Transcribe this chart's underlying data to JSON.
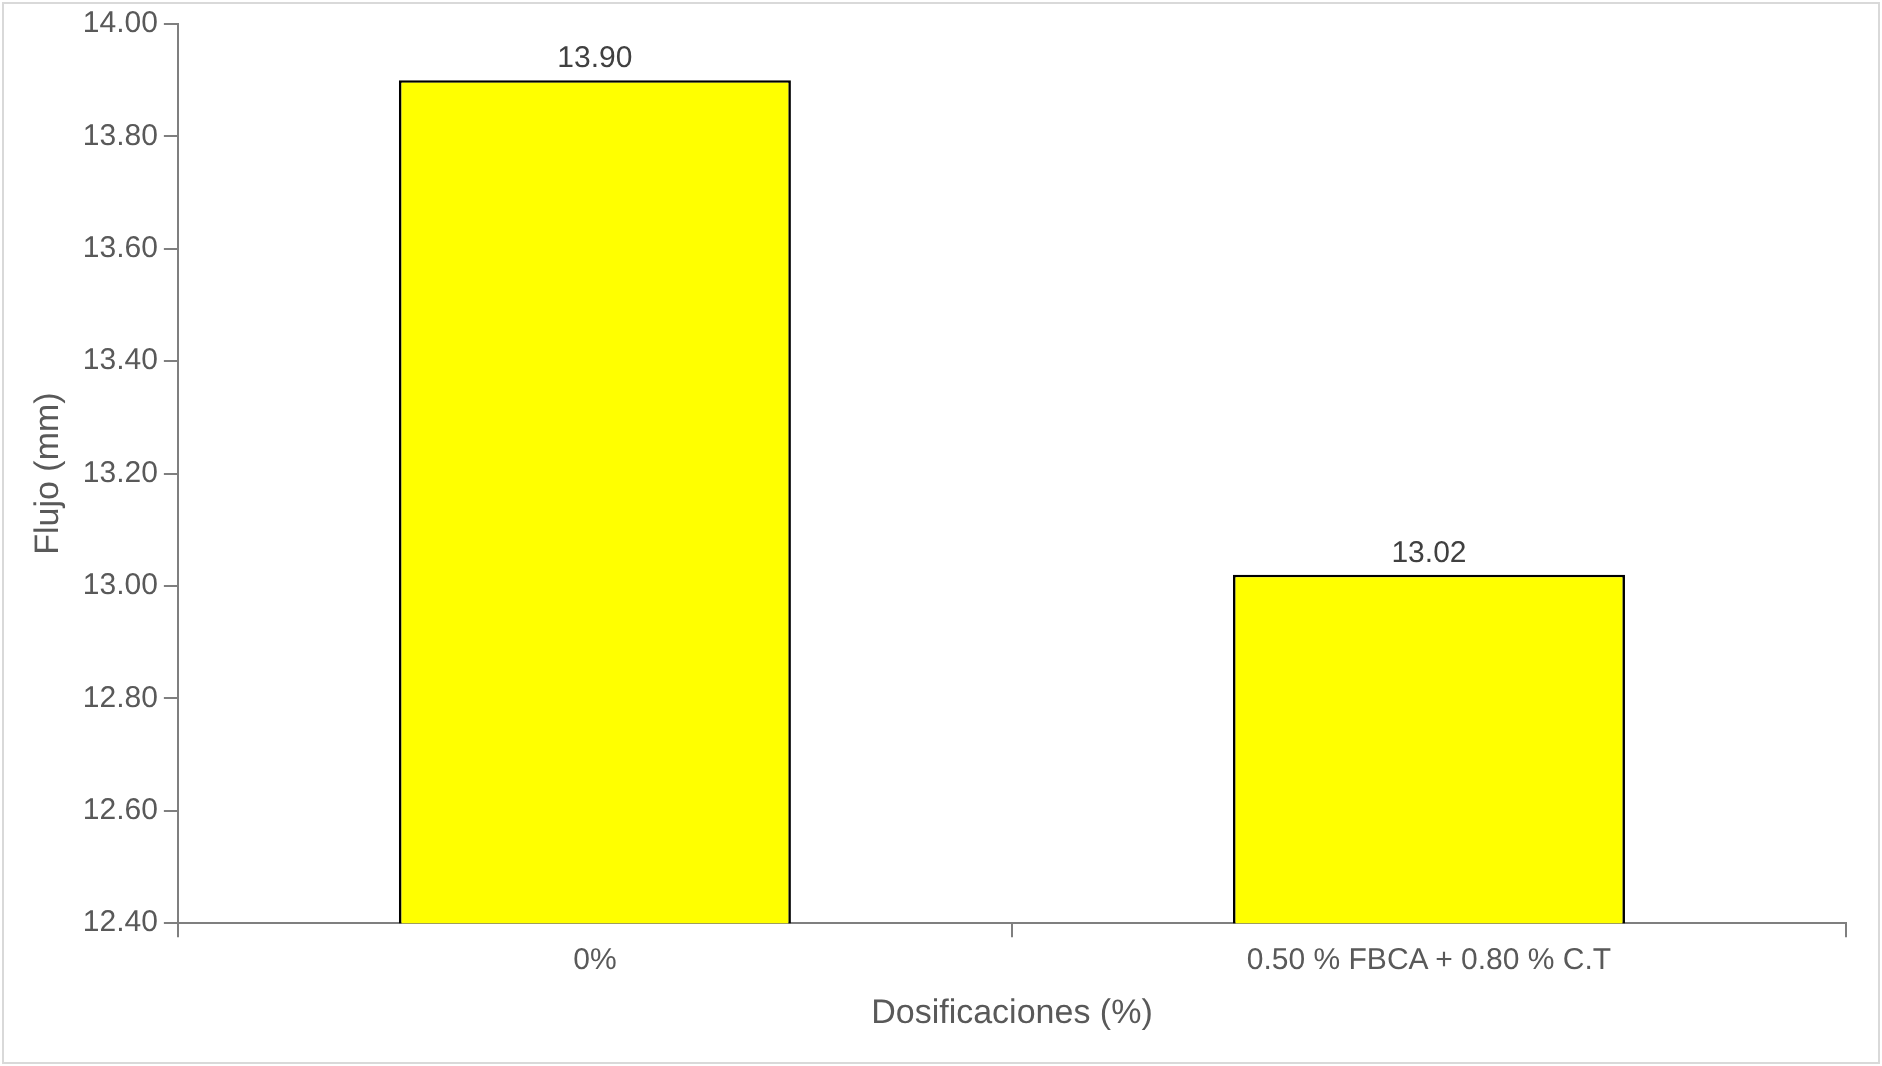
{
  "chart_data": {
    "type": "bar",
    "xlabel": "Dosificaciones (%)",
    "ylabel": "Flujo (mm)",
    "categories": [
      "0%",
      "0.50 % FBCA + 0.80 % C.T"
    ],
    "values": [
      13.9,
      13.02
    ],
    "value_labels": [
      "13.90",
      "13.02"
    ],
    "color": "#ffff00",
    "ylim": [
      12.4,
      14.0
    ],
    "yticks": [
      {
        "value": 12.4,
        "label": "12.40"
      },
      {
        "value": 12.6,
        "label": "12.60"
      },
      {
        "value": 12.8,
        "label": "12.80"
      },
      {
        "value": 13.0,
        "label": "13.00"
      },
      {
        "value": 13.2,
        "label": "13.20"
      },
      {
        "value": 13.4,
        "label": "13.40"
      },
      {
        "value": 13.6,
        "label": "13.60"
      },
      {
        "value": 13.8,
        "label": "13.80"
      },
      {
        "value": 14.0,
        "label": "14.00"
      }
    ],
    "grid": false,
    "legend": false
  }
}
